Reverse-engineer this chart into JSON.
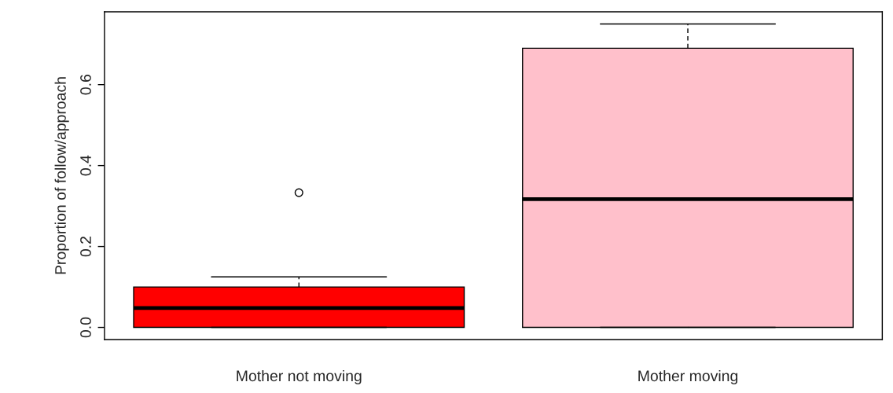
{
  "chart_data": {
    "type": "box",
    "ylabel": "Proportion of follow/approach",
    "categories": [
      "Mother not moving",
      "Mother moving"
    ],
    "colors": [
      "#ff0000",
      "#ffc0cb"
    ],
    "boxes": [
      {
        "low": 0,
        "q1": 0,
        "median": 0.048,
        "q3": 0.1,
        "high": 0.125,
        "outliers": [
          0.333
        ]
      },
      {
        "low": 0,
        "q1": 0,
        "median": 0.317,
        "q3": 0.69,
        "high": 0.75
      }
    ],
    "ylim": [
      -0.03,
      0.78
    ],
    "yticks": [
      {
        "value": 0,
        "label": "0.0"
      },
      {
        "value": 0.2,
        "label": "0.2"
      },
      {
        "value": 0.4,
        "label": "0.4"
      },
      {
        "value": 0.6,
        "label": "0.6"
      }
    ],
    "grid": false,
    "legend": false
  }
}
